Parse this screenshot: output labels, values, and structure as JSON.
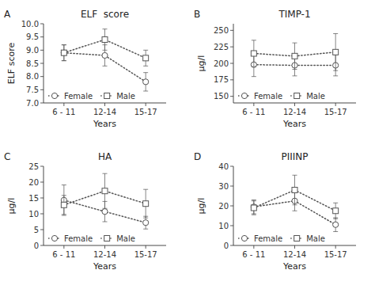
{
  "chart_data": [
    {
      "type": "line",
      "title": "ELF  score",
      "annotations": [
        "A"
      ],
      "x_label": "Years",
      "y_label": "ELF score",
      "categories": [
        "6 - 11",
        "12-14",
        "15-17"
      ],
      "series": [
        {
          "name": "Female",
          "color": "#555555",
          "marker": "circle",
          "line_style": "dotted",
          "values": [
            8.9,
            8.8,
            7.8
          ],
          "errors": [
            0.3,
            0.4,
            0.35
          ]
        },
        {
          "name": "Male",
          "color": "#555555",
          "marker": "square",
          "line_style": "dotted",
          "values": [
            8.9,
            9.4,
            8.7
          ],
          "errors": [
            0.3,
            0.4,
            0.3
          ]
        }
      ],
      "ylim": [
        7.0,
        10.0
      ],
      "yticks": [
        {
          "value": 7.0,
          "label": "7.0"
        },
        {
          "value": 7.5,
          "label": "7.5"
        },
        {
          "value": 8.0,
          "label": "8.0"
        },
        {
          "value": 8.5,
          "label": "8.5"
        },
        {
          "value": 9.0,
          "label": "9.0"
        },
        {
          "value": 9.5,
          "label": "9.5"
        },
        {
          "value": 10.0,
          "label": "10.0"
        }
      ],
      "legend": "lower left"
    },
    {
      "type": "line",
      "title": "TIMP-1",
      "annotations": [
        "B"
      ],
      "x_label": "Years",
      "y_label": "µg/l",
      "categories": [
        "6 - 11",
        "12-14",
        "15-17"
      ],
      "series": [
        {
          "name": "Female",
          "color": "#555555",
          "marker": "circle",
          "line_style": "dotted",
          "values": [
            198,
            197,
            197
          ],
          "errors": [
            18,
            16,
            16
          ]
        },
        {
          "name": "Male",
          "color": "#555555",
          "marker": "square",
          "line_style": "dotted",
          "values": [
            215,
            211,
            217
          ],
          "errors": [
            20,
            20,
            28
          ]
        }
      ],
      "ylim": [
        140,
        260
      ],
      "yticks": [
        150,
        175,
        200,
        225,
        250
      ],
      "legend": "lower left"
    },
    {
      "type": "line",
      "title": "HA",
      "annotations": [
        "C"
      ],
      "x_label": "Years",
      "y_label": "µg/l",
      "categories": [
        "6 - 11",
        "12-14",
        "15-17"
      ],
      "series": [
        {
          "name": "Female",
          "color": "#555555",
          "marker": "circle",
          "line_style": "dotted",
          "values": [
            14.3,
            10.7,
            7.2
          ],
          "errors": [
            4.8,
            3.2,
            2.0
          ]
        },
        {
          "name": "Male",
          "color": "#555555",
          "marker": "square",
          "line_style": "dotted",
          "values": [
            12.8,
            17.2,
            13.2
          ],
          "errors": [
            3.0,
            5.5,
            4.5
          ]
        }
      ],
      "ylim": [
        0,
        25
      ],
      "yticks": [
        0,
        5,
        10,
        15,
        20,
        25
      ],
      "legend": "lower left"
    },
    {
      "type": "line",
      "title": "PIIINP",
      "annotations": [
        "D"
      ],
      "x_label": "Years",
      "y_label": "µg/l",
      "categories": [
        "6 - 11",
        "12-14",
        "15-17"
      ],
      "series": [
        {
          "name": "Female",
          "color": "#555555",
          "marker": "circle",
          "line_style": "dotted",
          "values": [
            19.5,
            22.5,
            10.5
          ],
          "errors": [
            3.5,
            5.0,
            3.5
          ]
        },
        {
          "name": "Male",
          "color": "#555555",
          "marker": "square",
          "line_style": "dotted",
          "values": [
            19.0,
            28.0,
            17.5
          ],
          "errors": [
            3.5,
            7.5,
            4.0
          ]
        }
      ],
      "ylim": [
        0,
        40
      ],
      "yticks": [
        0,
        10,
        20,
        30,
        40
      ],
      "legend": "lower left"
    }
  ]
}
